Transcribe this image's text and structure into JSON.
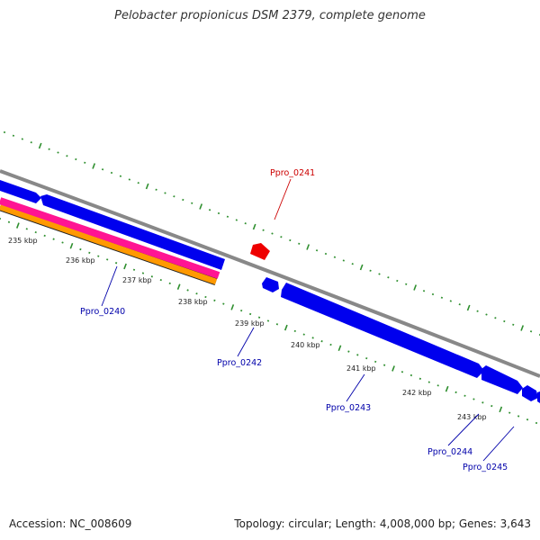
{
  "title": "Pelobacter propionicus DSM 2379, complete genome",
  "footer": {
    "accession": "Accession: NC_008609",
    "summary": "Topology: circular; Length: 4,008,000 bp; Genes: 3,643"
  },
  "colors": {
    "backbone": "#888888",
    "tick": "#2f8f2f",
    "cds_blue": "#0000ee",
    "cds_red": "#ee0000",
    "pink": "#ff1493",
    "orange": "#ff9900",
    "label_blue": "#0000aa",
    "label_red": "#cc0000"
  },
  "scale_labels": [
    "235 kbp",
    "236 kbp",
    "237 kbp",
    "238 kbp",
    "239 kbp",
    "240 kbp",
    "241 kbp",
    "242 kbp",
    "243 kbp"
  ],
  "gene_labels": [
    {
      "text": "Ppro_0241",
      "color": "red"
    },
    {
      "text": "Ppro_0240",
      "color": "blue"
    },
    {
      "text": "Ppro_0242",
      "color": "blue"
    },
    {
      "text": "Ppro_0243",
      "color": "blue"
    },
    {
      "text": "Ppro_0244",
      "color": "blue"
    },
    {
      "text": "Ppro_0245",
      "color": "blue"
    }
  ]
}
